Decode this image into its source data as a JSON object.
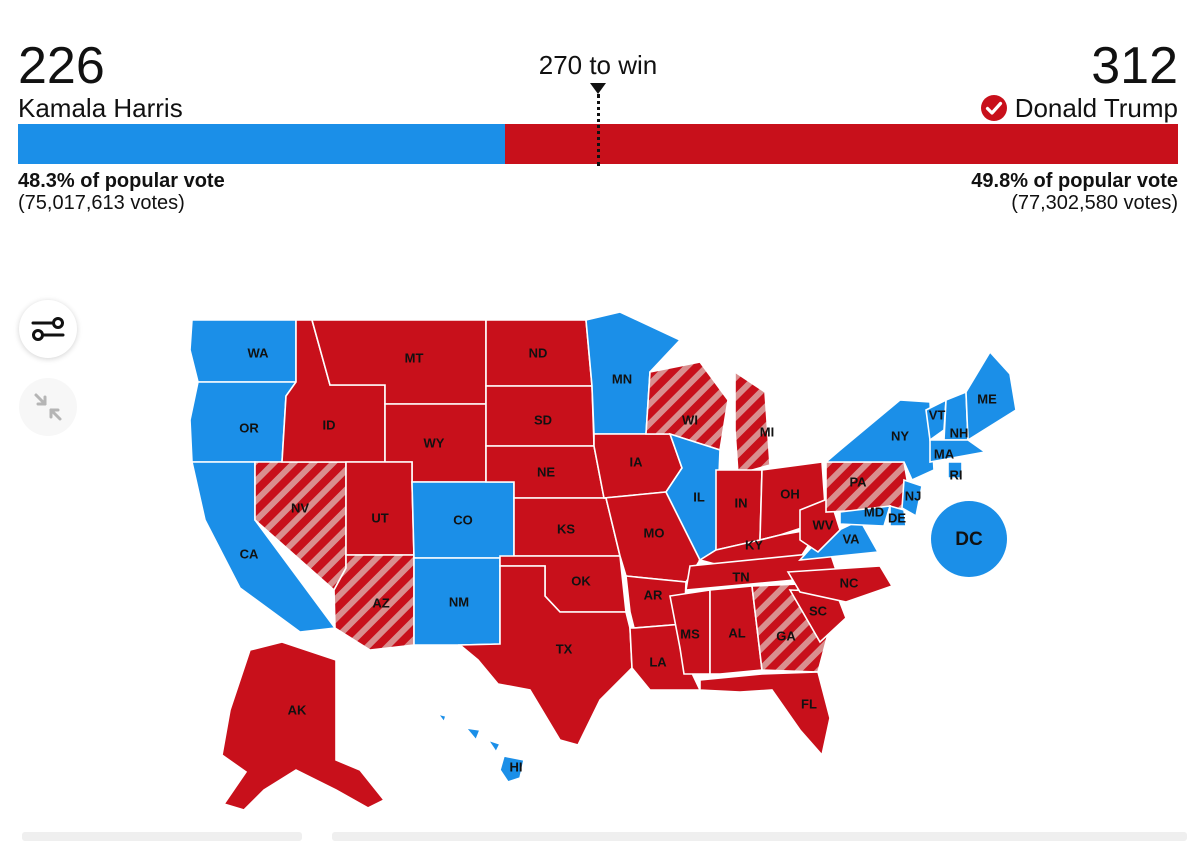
{
  "header": {
    "left": {
      "electoral_votes": "226",
      "candidate": "Kamala Harris",
      "popular_pct": "48.3% of popular vote",
      "votes": "(75,017,613 votes)"
    },
    "right": {
      "electoral_votes": "312",
      "candidate": "Donald Trump",
      "popular_pct": "49.8% of popular vote",
      "votes": "(77,302,580 votes)"
    },
    "threshold_label": "270 to win"
  },
  "controls": {
    "filter_icon": "sliders-icon",
    "collapse_icon": "collapse-arrows-icon"
  },
  "colors": {
    "dem": "#1b8fe8",
    "rep": "#c8101b",
    "hatch_light": "#d98f8f"
  },
  "map": {
    "states": [
      {
        "id": "WA",
        "party": "dem",
        "flipped": false
      },
      {
        "id": "OR",
        "party": "dem",
        "flipped": false
      },
      {
        "id": "CA",
        "party": "dem",
        "flipped": false
      },
      {
        "id": "NV",
        "party": "rep",
        "flipped": true
      },
      {
        "id": "ID",
        "party": "rep",
        "flipped": false
      },
      {
        "id": "MT",
        "party": "rep",
        "flipped": false
      },
      {
        "id": "WY",
        "party": "rep",
        "flipped": false
      },
      {
        "id": "UT",
        "party": "rep",
        "flipped": false
      },
      {
        "id": "AZ",
        "party": "rep",
        "flipped": true
      },
      {
        "id": "CO",
        "party": "dem",
        "flipped": false
      },
      {
        "id": "NM",
        "party": "dem",
        "flipped": false
      },
      {
        "id": "ND",
        "party": "rep",
        "flipped": false
      },
      {
        "id": "SD",
        "party": "rep",
        "flipped": false
      },
      {
        "id": "NE",
        "party": "rep",
        "flipped": false
      },
      {
        "id": "KS",
        "party": "rep",
        "flipped": false
      },
      {
        "id": "OK",
        "party": "rep",
        "flipped": false
      },
      {
        "id": "TX",
        "party": "rep",
        "flipped": false
      },
      {
        "id": "MN",
        "party": "dem",
        "flipped": false
      },
      {
        "id": "IA",
        "party": "rep",
        "flipped": false
      },
      {
        "id": "MO",
        "party": "rep",
        "flipped": false
      },
      {
        "id": "AR",
        "party": "rep",
        "flipped": false
      },
      {
        "id": "LA",
        "party": "rep",
        "flipped": false
      },
      {
        "id": "WI",
        "party": "rep",
        "flipped": true
      },
      {
        "id": "IL",
        "party": "dem",
        "flipped": false
      },
      {
        "id": "MI",
        "party": "rep",
        "flipped": true
      },
      {
        "id": "IN",
        "party": "rep",
        "flipped": false
      },
      {
        "id": "OH",
        "party": "rep",
        "flipped": false
      },
      {
        "id": "KY",
        "party": "rep",
        "flipped": false
      },
      {
        "id": "TN",
        "party": "rep",
        "flipped": false
      },
      {
        "id": "MS",
        "party": "rep",
        "flipped": false
      },
      {
        "id": "AL",
        "party": "rep",
        "flipped": false
      },
      {
        "id": "GA",
        "party": "rep",
        "flipped": true
      },
      {
        "id": "FL",
        "party": "rep",
        "flipped": false
      },
      {
        "id": "SC",
        "party": "rep",
        "flipped": false
      },
      {
        "id": "NC",
        "party": "rep",
        "flipped": false
      },
      {
        "id": "VA",
        "party": "dem",
        "flipped": false
      },
      {
        "id": "WV",
        "party": "rep",
        "flipped": false
      },
      {
        "id": "PA",
        "party": "rep",
        "flipped": true
      },
      {
        "id": "NY",
        "party": "dem",
        "flipped": false
      },
      {
        "id": "VT",
        "party": "dem",
        "flipped": false
      },
      {
        "id": "NH",
        "party": "dem",
        "flipped": false
      },
      {
        "id": "ME",
        "party": "dem",
        "flipped": false
      },
      {
        "id": "MA",
        "party": "dem",
        "flipped": false
      },
      {
        "id": "RI",
        "party": "dem",
        "flipped": false
      },
      {
        "id": "NJ",
        "party": "dem",
        "flipped": false
      },
      {
        "id": "MD",
        "party": "dem",
        "flipped": false
      },
      {
        "id": "DE",
        "party": "dem",
        "flipped": false
      },
      {
        "id": "DC",
        "party": "dem",
        "flipped": false
      },
      {
        "id": "AK",
        "party": "rep",
        "flipped": false
      },
      {
        "id": "HI",
        "party": "dem",
        "flipped": false
      }
    ]
  }
}
